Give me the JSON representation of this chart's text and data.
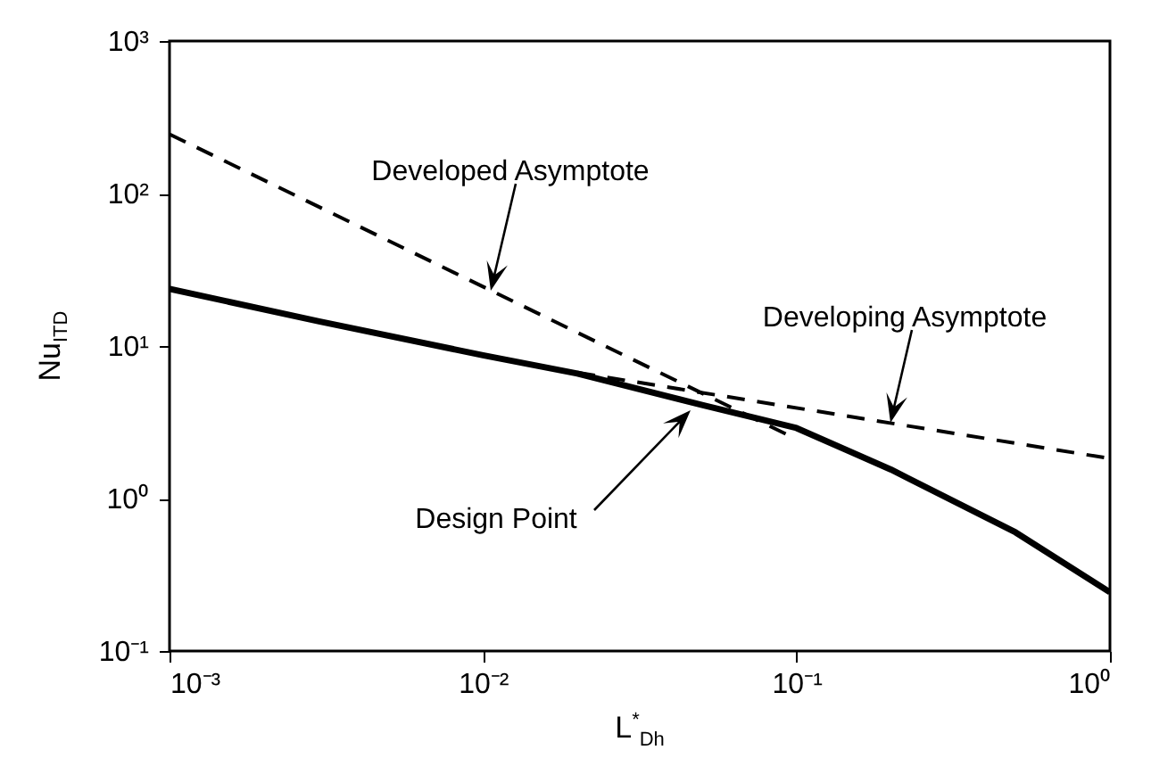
{
  "chart_data": {
    "type": "line",
    "xlabel": "L$^{*}$$_{Dh}$",
    "ylabel": "Nu$_{ITD}$",
    "log": "xy",
    "xlim": [
      0.001,
      1
    ],
    "ylim": [
      0.1,
      1000
    ],
    "xticks": [
      {
        "value": 0.001,
        "label": "10⁻³"
      },
      {
        "value": 0.01,
        "label": "10⁻²"
      },
      {
        "value": 0.1,
        "label": "10⁻¹"
      },
      {
        "value": 1,
        "label": "10⁰"
      }
    ],
    "yticks": [
      {
        "value": 0.1,
        "label": "10⁻¹"
      },
      {
        "value": 1,
        "label": "10⁰"
      },
      {
        "value": 10,
        "label": "10¹"
      },
      {
        "value": 100,
        "label": "10²"
      },
      {
        "value": 1000,
        "label": "10³"
      }
    ],
    "series": [
      {
        "color": "#000000",
        "line_style": "dashed",
        "x": [
          0.001,
          0.1
        ],
        "values": [
          245,
          2.45
        ]
      },
      {
        "color": "#000000",
        "line_style": "dashed",
        "x": [
          0.02,
          1
        ],
        "values": [
          6.7,
          1.83
        ]
      },
      {
        "color": "#000000",
        "line_style": "solid",
        "x": [
          0.001,
          0.003,
          0.01,
          0.02,
          0.05,
          0.1,
          0.2,
          0.5,
          1
        ],
        "values": [
          23.7,
          14.5,
          8.7,
          6.6,
          4.1,
          2.9,
          1.55,
          0.6,
          0.243
        ]
      }
    ],
    "annotations": [
      "Developed Asymptote",
      "Developing Asymptote",
      "Design Point"
    ]
  }
}
